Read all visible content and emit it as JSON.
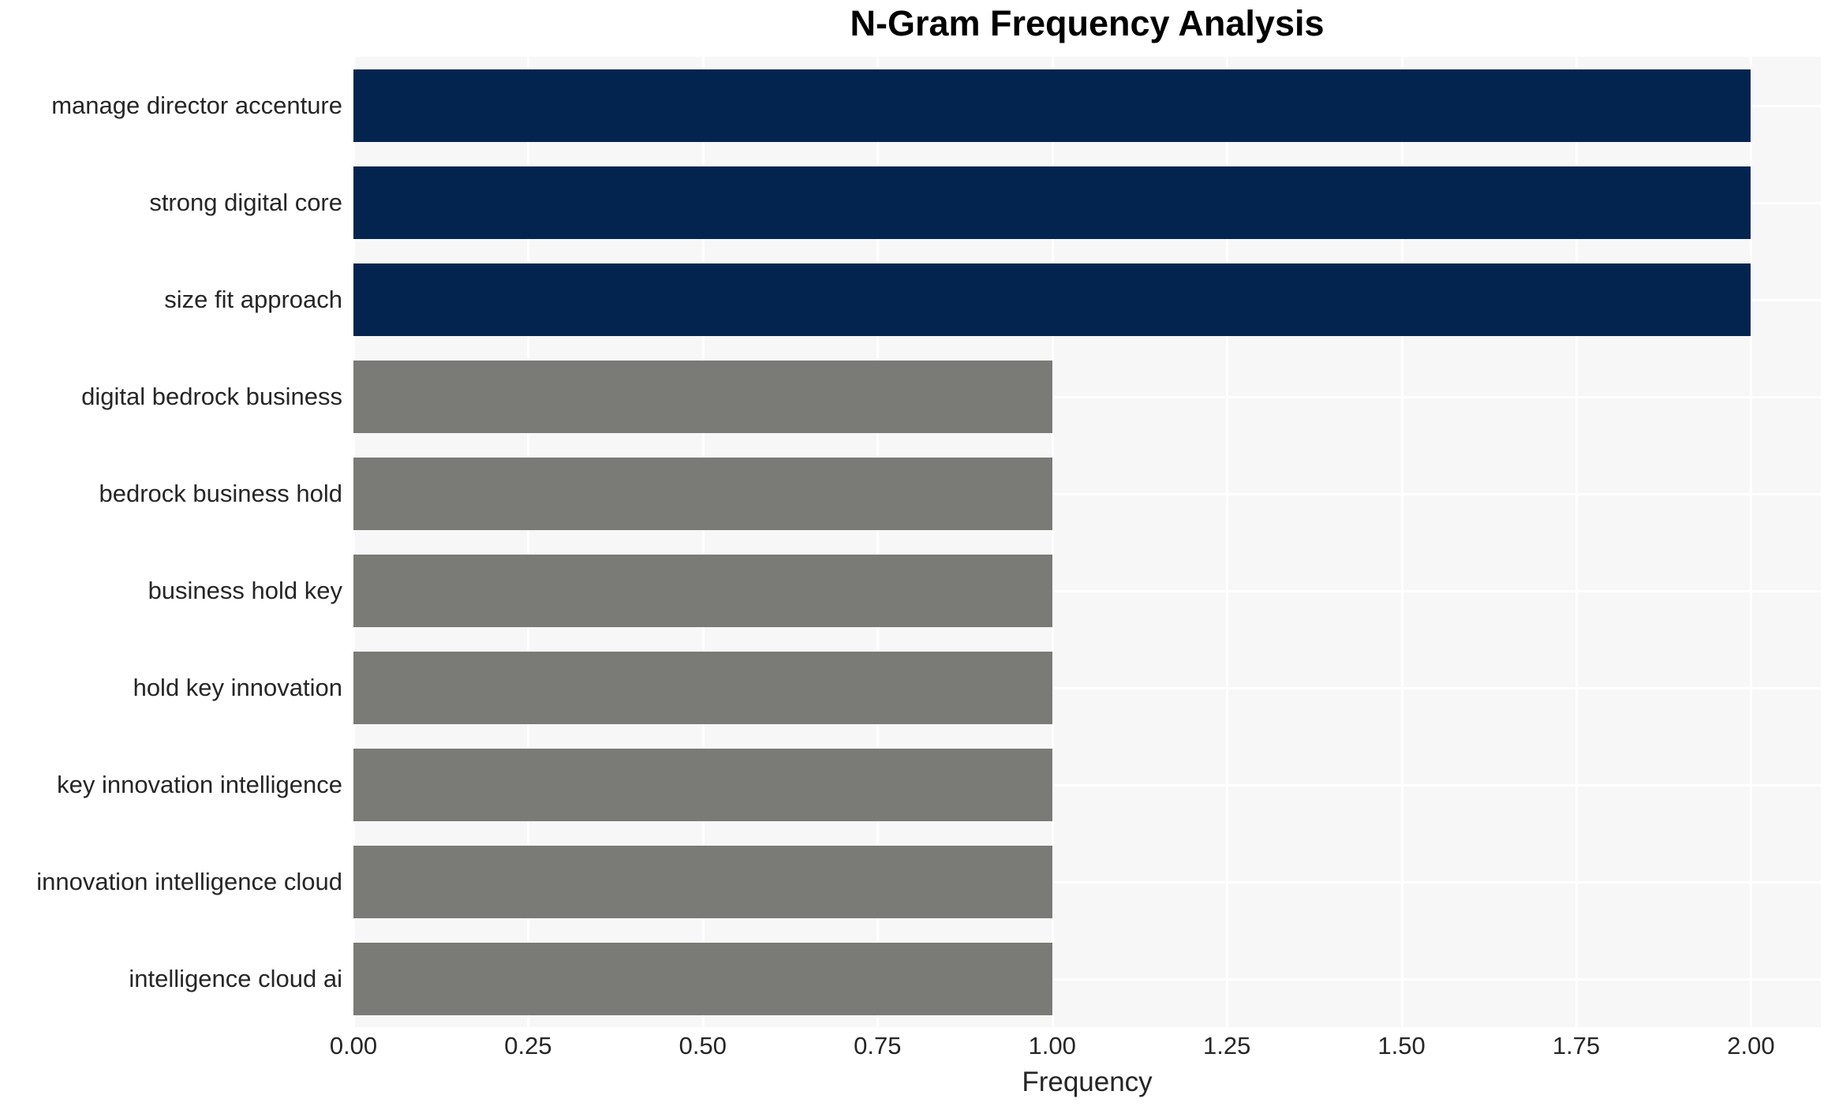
{
  "chart_data": {
    "type": "bar",
    "orientation": "horizontal",
    "title": "N-Gram Frequency Analysis",
    "xlabel": "Frequency",
    "ylabel": "",
    "categories": [
      "manage director accenture",
      "strong digital core",
      "size fit approach",
      "digital bedrock business",
      "bedrock business hold",
      "business hold key",
      "hold key innovation",
      "key innovation intelligence",
      "innovation intelligence cloud",
      "intelligence cloud ai"
    ],
    "values": [
      2,
      2,
      2,
      1,
      1,
      1,
      1,
      1,
      1,
      1
    ],
    "bar_colors": [
      "#042450",
      "#042450",
      "#042450",
      "#7a7a76",
      "#7a7a76",
      "#7a7a76",
      "#7a7a76",
      "#7a7a76",
      "#7a7a76",
      "#7a7a76"
    ],
    "xlim": [
      0,
      2.1
    ],
    "x_ticks": [
      0,
      0.25,
      0.5,
      0.75,
      1.0,
      1.25,
      1.5,
      1.75,
      2.0
    ],
    "x_tick_labels": [
      "0.00",
      "0.25",
      "0.50",
      "0.75",
      "1.00",
      "1.25",
      "1.50",
      "1.75",
      "2.00"
    ],
    "grid": true,
    "grid_color": "#ffffff",
    "plot_background": "#f7f7f7",
    "figure_background": "#ffffff",
    "legend": false,
    "colors": {
      "highlight_bar": "#042450",
      "default_bar": "#7a7a76",
      "text": "#262626",
      "title_text": "#000000"
    }
  }
}
